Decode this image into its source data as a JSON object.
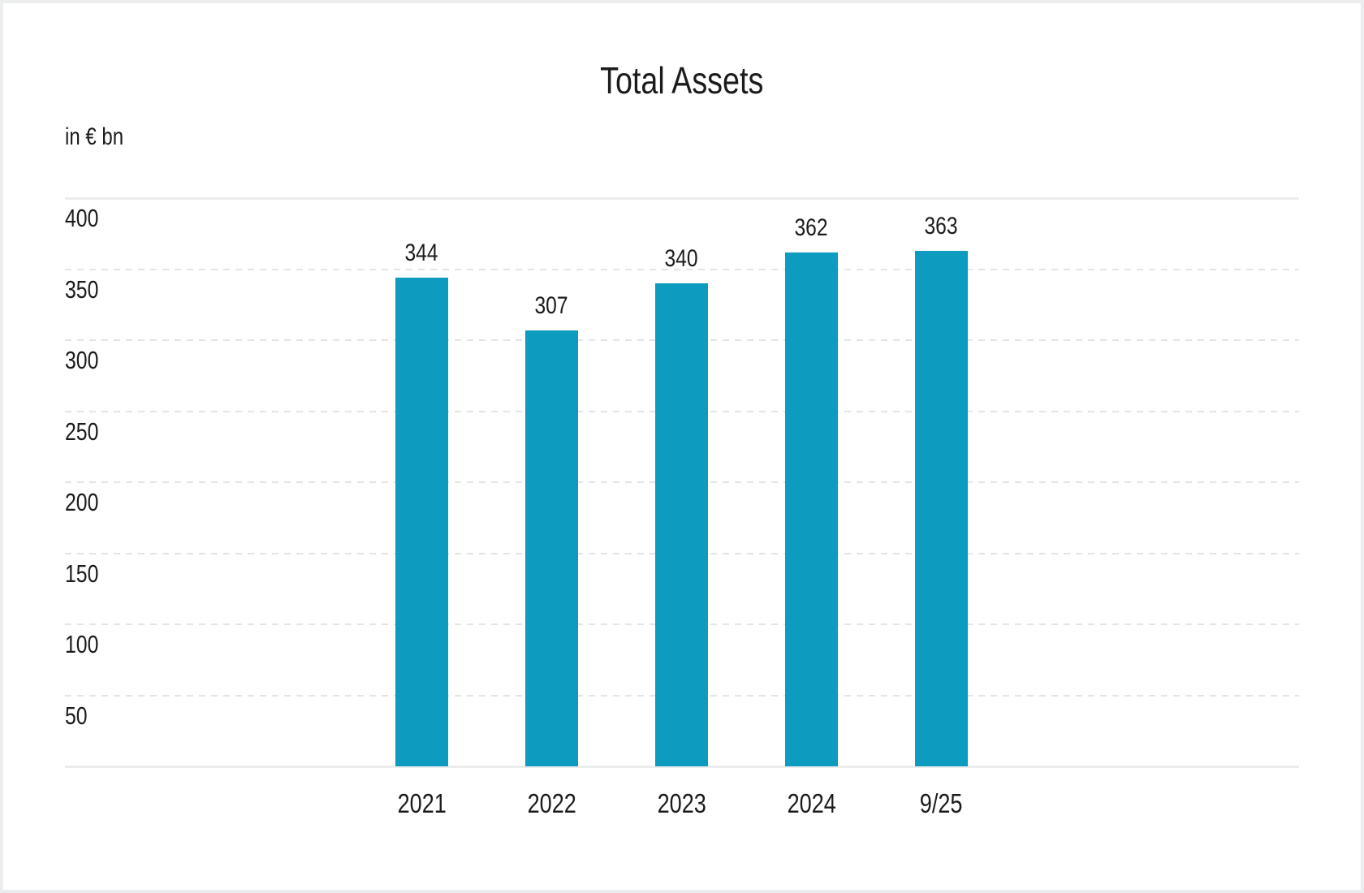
{
  "chart_data": {
    "type": "bar",
    "title": "Total Assets",
    "unit_label": "in € bn",
    "xlabel": "",
    "ylabel": "in € bn",
    "categories": [
      "2021",
      "2022",
      "2023",
      "2024",
      "9/25"
    ],
    "values": [
      344,
      307,
      340,
      362,
      363
    ],
    "value_labels": [
      "344",
      "307",
      "340",
      "362",
      "363"
    ],
    "yticks": [
      "400",
      "350",
      "300",
      "250",
      "200",
      "150",
      "100",
      "50"
    ],
    "ytick_values": [
      400,
      350,
      300,
      250,
      200,
      150,
      100,
      50
    ],
    "ylim": [
      0,
      400
    ],
    "grid": "horizontal, dashed; top line and baseline solid",
    "legend": "none",
    "bar_color": "#0d9bc0"
  },
  "colors": {
    "background": "#ffffff",
    "page_border": "#ebedef",
    "text": "#1b1b1b",
    "gridline_solid": "#ededee",
    "gridline_dashed": "#e4e4e5",
    "bar": "#0d9bc0"
  }
}
